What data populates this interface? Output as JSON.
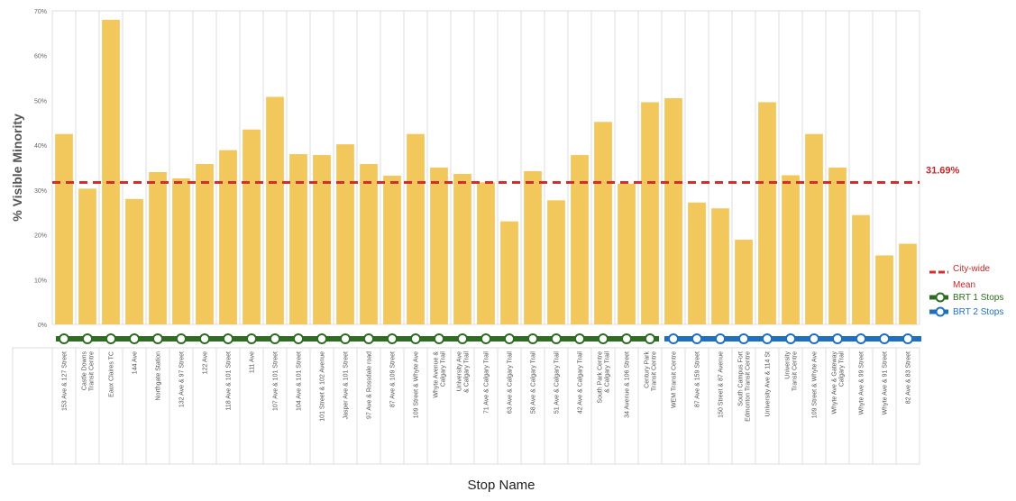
{
  "chart_data": {
    "type": "bar",
    "title": "",
    "xlabel": "Stop Name",
    "ylabel": "% Visible Minority",
    "ylim": [
      0,
      70
    ],
    "yticks": [
      0,
      10,
      20,
      30,
      40,
      50,
      60,
      70
    ],
    "ytick_labels": [
      "0%",
      "10%",
      "20%",
      "30%",
      "40%",
      "50%",
      "60%",
      "70%"
    ],
    "grid": "vertical lines between categories",
    "categories": [
      "153 Ave & 127 Street",
      "Castle Downs Transit Centre",
      "Eaux Claires TC",
      "144 Ave",
      "Northgate Station",
      "132 Ave & 97 Street",
      "122 Ave",
      "118 Ave & 101 Street",
      "111 Ave",
      "107 Ave & 101 Street",
      "104 Ave & 101 Street",
      "101 Street & 102 Avenue",
      "Jasper Ave & 101 Street",
      "97 Ave & Rossdale road",
      "87 Ave & 109 Street",
      "109 Street & Whyte Ave",
      "Whyte Avenue & Calgary Trail",
      "University Ave & Calgary Trail",
      "71 Ave & Calgary Trail",
      "63 Ave & Calgary Trail",
      "58 Ave & Calgary Trail",
      "51 Ave & Calgary Trail",
      "42 Ave & Calgary Trail",
      "South Park Centre & Calgary Trail",
      "34 Avenue & 106 Street",
      "Century Park Transit Centre",
      "WEM Transit Centre",
      "87 Ave & 159 Street",
      "150 Street & 87 Avenue",
      "South Campus Fort Edmonton Transit Centre",
      "University Ave & 114 St",
      "University Transit Centre",
      "109 Street & Whyte Ave",
      "Whyte Ave & Gateway Calgary Trail",
      "Whyte Ave & 99 Street",
      "Whyte Ave & 91 Street",
      "82 Ave & 83 Street"
    ],
    "values": [
      42.5,
      30.3,
      68,
      28,
      34,
      32.6,
      35.8,
      38.9,
      43.5,
      50.8,
      38,
      37.8,
      40.2,
      35.8,
      33.2,
      42.5,
      35,
      33.6,
      31.7,
      23,
      34.2,
      27.7,
      37.8,
      45.2,
      31.4,
      49.6,
      50.5,
      27.2,
      25.9,
      18.9,
      49.6,
      33.3,
      42.5,
      35,
      24.4,
      15.4,
      18
    ],
    "route": [
      "BRT1",
      "BRT1",
      "BRT1",
      "BRT1",
      "BRT1",
      "BRT1",
      "BRT1",
      "BRT1",
      "BRT1",
      "BRT1",
      "BRT1",
      "BRT1",
      "BRT1",
      "BRT1",
      "BRT1",
      "BRT1",
      "BRT1",
      "BRT1",
      "BRT1",
      "BRT1",
      "BRT1",
      "BRT1",
      "BRT1",
      "BRT1",
      "BRT1",
      "BRT1",
      "BRT2",
      "BRT2",
      "BRT2",
      "BRT2",
      "BRT2",
      "BRT2",
      "BRT2",
      "BRT2",
      "BRT2",
      "BRT2",
      "BRT2"
    ],
    "mean": 31.69,
    "mean_label": "31.69%",
    "legend_placement": "right",
    "legend": {
      "mean": "City-wide Mean",
      "brt1": "BRT 1 Stops",
      "brt2": "BRT 2 Stops"
    },
    "colors": {
      "bar": "#f2c85c",
      "mean": "#d42d2d",
      "mean_label": "#c0282b",
      "brt1": "#2f6b22",
      "brt2": "#1f6fc0",
      "grid": "#dcdcdc",
      "axis_text": "#666666",
      "ylabel": "#555555"
    }
  }
}
